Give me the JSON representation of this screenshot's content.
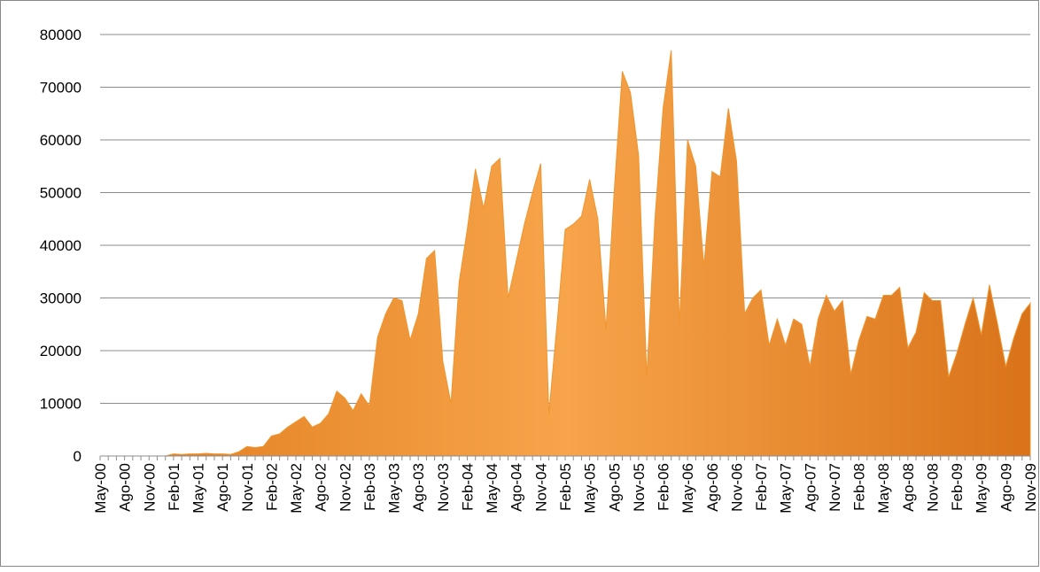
{
  "chart_data": {
    "type": "area",
    "color": "#f0952e",
    "categories": [
      "May-00",
      null,
      null,
      "Ago-00",
      null,
      null,
      "Nov-00",
      null,
      null,
      "Feb-01",
      null,
      null,
      "May-01",
      null,
      null,
      "Ago-01",
      null,
      null,
      "Nov-01",
      null,
      null,
      "Feb-02",
      null,
      null,
      "May-02",
      null,
      null,
      "Ago-02",
      null,
      null,
      "Nov-02",
      null,
      null,
      "Feb-03",
      null,
      null,
      "May-03",
      null,
      null,
      "Ago-03",
      null,
      null,
      "Nov-03",
      null,
      null,
      "Feb-04",
      null,
      null,
      "May-04",
      null,
      null,
      "Ago-04",
      null,
      null,
      "Nov-04",
      null,
      null,
      "Feb-05",
      null,
      null,
      "May-05",
      null,
      null,
      "Ago-05",
      null,
      null,
      "Nov-05",
      null,
      null,
      "Feb-06",
      null,
      null,
      "May-06",
      null,
      null,
      "Ago-06",
      null,
      null,
      "Nov-06",
      null,
      null,
      "Feb-07",
      null,
      null,
      "May-07",
      null,
      null,
      "Ago-07",
      null,
      null,
      "Nov-07",
      null,
      null,
      "Feb-08",
      null,
      null,
      "May-08",
      null,
      null,
      "Ago-08",
      null,
      null,
      "Nov-08",
      null,
      null,
      "Feb-09",
      null,
      null,
      "May-09",
      null,
      null,
      "Ago-09",
      null,
      null,
      "Nov-09"
    ],
    "values": [
      0,
      0,
      0,
      0,
      0,
      0,
      0,
      0,
      0,
      400,
      300,
      400,
      400,
      500,
      400,
      400,
      300,
      800,
      1800,
      1600,
      1800,
      3800,
      4200,
      5500,
      6500,
      7500,
      5500,
      6200,
      8000,
      12300,
      11000,
      8600,
      11800,
      9500,
      22500,
      27000,
      30000,
      29500,
      22000,
      27000,
      37500,
      39000,
      18000,
      10000,
      33000,
      43000,
      54500,
      47000,
      55000,
      56500,
      30000,
      37000,
      44000,
      50000,
      55500,
      8000,
      25000,
      43000,
      44000,
      45500,
      52500,
      45000,
      24000,
      50000,
      73000,
      69000,
      57000,
      15000,
      45000,
      66000,
      77000,
      25000,
      60000,
      55000,
      36000,
      54000,
      53000,
      66000,
      56000,
      27000,
      30000,
      31500,
      21000,
      26000,
      21000,
      26000,
      25000,
      17000,
      26000,
      30500,
      27500,
      29500,
      15500,
      22000,
      26500,
      26000,
      30500,
      30500,
      32000,
      20500,
      23500,
      31000,
      29500,
      29500,
      15000,
      19500,
      25000,
      30000,
      23000,
      32500,
      25000,
      17000,
      22500,
      27000,
      29000
    ],
    "ylim": [
      0,
      80000
    ],
    "yticks": [
      0,
      10000,
      20000,
      30000,
      40000,
      50000,
      60000,
      70000,
      80000
    ],
    "grid": true
  }
}
